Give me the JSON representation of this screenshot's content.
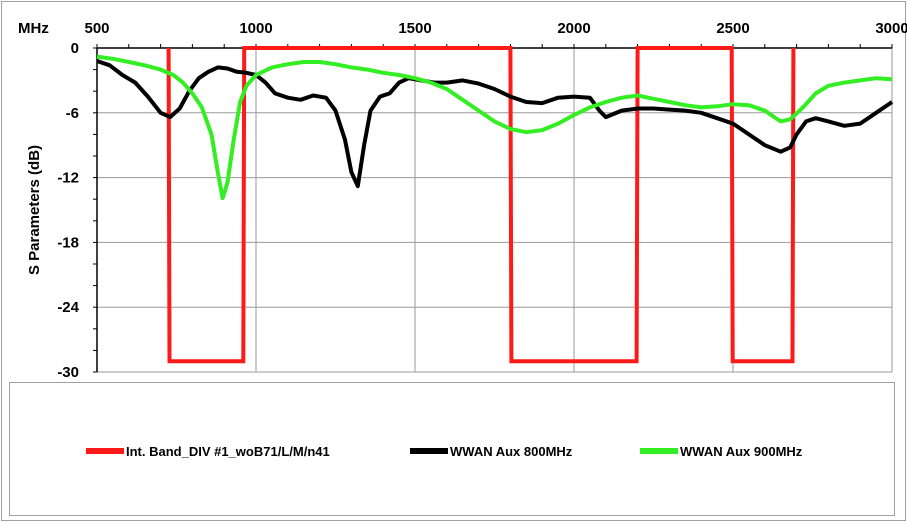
{
  "chart_data": {
    "type": "line",
    "title": "",
    "xlabel": "MHz",
    "ylabel": "S Parameters (dB)",
    "xlim": [
      500,
      3000
    ],
    "ylim": [
      -30,
      0
    ],
    "x_ticks": [
      500,
      1000,
      1500,
      2000,
      2500,
      3000
    ],
    "x_tick_labels": [
      "500",
      "1000",
      "1500",
      "2000",
      "2500",
      "3000"
    ],
    "y_ticks": [
      0,
      -6,
      -12,
      -18,
      -24,
      -30
    ],
    "y_tick_labels": [
      "0",
      "-6",
      "-12",
      "-18",
      "-24",
      "-30"
    ],
    "x_axis_position": "top",
    "grid": true,
    "legend_position": "bottom",
    "series": [
      {
        "name": "Int. Band_DIV #1_woB71/L/M/n41",
        "color": "#ff1a1a",
        "x": [
          725,
          728,
          960,
          963,
          1800,
          1803,
          2197,
          2200,
          2496,
          2499,
          2687,
          2690
        ],
        "y": [
          0,
          -29,
          -29,
          0,
          0,
          -29,
          -29,
          0,
          0,
          -29,
          -29,
          0
        ]
      },
      {
        "name": "WWAN Aux 800MHz",
        "color": "#000000",
        "x": [
          500,
          540,
          580,
          620,
          660,
          700,
          730,
          760,
          790,
          820,
          850,
          880,
          910,
          940,
          970,
          1000,
          1030,
          1060,
          1100,
          1140,
          1180,
          1220,
          1250,
          1280,
          1300,
          1320,
          1340,
          1360,
          1390,
          1420,
          1450,
          1480,
          1520,
          1560,
          1600,
          1650,
          1700,
          1750,
          1800,
          1850,
          1900,
          1950,
          2000,
          2050,
          2080,
          2100,
          2150,
          2200,
          2250,
          2300,
          2350,
          2400,
          2450,
          2500,
          2550,
          2600,
          2650,
          2680,
          2700,
          2730,
          2760,
          2800,
          2850,
          2900,
          2950,
          3000
        ],
        "y": [
          -1.2,
          -1.6,
          -2.5,
          -3.2,
          -4.5,
          -6.0,
          -6.4,
          -5.6,
          -4.0,
          -2.8,
          -2.2,
          -1.8,
          -1.9,
          -2.2,
          -2.3,
          -2.5,
          -3.2,
          -4.2,
          -4.6,
          -4.8,
          -4.4,
          -4.6,
          -5.8,
          -8.5,
          -11.5,
          -12.8,
          -9.0,
          -5.8,
          -4.5,
          -4.2,
          -3.2,
          -2.8,
          -3.0,
          -3.2,
          -3.2,
          -3.0,
          -3.3,
          -3.8,
          -4.5,
          -5.0,
          -5.1,
          -4.6,
          -4.5,
          -4.6,
          -5.8,
          -6.4,
          -5.8,
          -5.6,
          -5.6,
          -5.7,
          -5.8,
          -6.0,
          -6.5,
          -7.0,
          -8.0,
          -9.0,
          -9.6,
          -9.2,
          -8.0,
          -6.8,
          -6.5,
          -6.8,
          -7.2,
          -7.0,
          -6.0,
          -5.0
        ]
      },
      {
        "name": "WWAN Aux 900MHz",
        "color": "#33ee22",
        "x": [
          500,
          550,
          600,
          650,
          700,
          740,
          770,
          800,
          830,
          860,
          880,
          895,
          910,
          930,
          950,
          970,
          1000,
          1050,
          1100,
          1150,
          1200,
          1250,
          1300,
          1350,
          1400,
          1450,
          1500,
          1550,
          1600,
          1650,
          1700,
          1750,
          1800,
          1850,
          1900,
          1950,
          2000,
          2050,
          2100,
          2150,
          2200,
          2250,
          2300,
          2350,
          2400,
          2450,
          2500,
          2550,
          2600,
          2630,
          2650,
          2680,
          2720,
          2760,
          2800,
          2850,
          2900,
          2950,
          3000
        ],
        "y": [
          -0.8,
          -1.0,
          -1.3,
          -1.6,
          -2.0,
          -2.5,
          -3.2,
          -4.2,
          -5.5,
          -8.0,
          -11.5,
          -13.9,
          -12.5,
          -8.5,
          -5.0,
          -3.5,
          -2.5,
          -1.8,
          -1.5,
          -1.3,
          -1.3,
          -1.5,
          -1.8,
          -2.0,
          -2.3,
          -2.5,
          -2.8,
          -3.2,
          -3.8,
          -4.8,
          -5.8,
          -6.8,
          -7.5,
          -7.8,
          -7.6,
          -7.0,
          -6.2,
          -5.5,
          -5.0,
          -4.6,
          -4.4,
          -4.7,
          -5.0,
          -5.3,
          -5.5,
          -5.4,
          -5.2,
          -5.3,
          -5.8,
          -6.4,
          -6.8,
          -6.6,
          -5.5,
          -4.2,
          -3.5,
          -3.2,
          -3.0,
          -2.8,
          -2.9
        ]
      }
    ]
  }
}
